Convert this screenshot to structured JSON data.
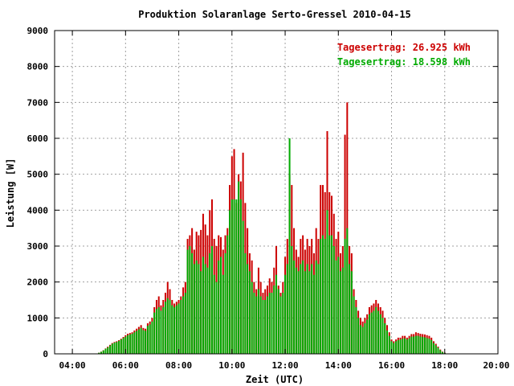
{
  "chart_data": {
    "type": "bar",
    "title": "Produktion Solaranlage Serto-Gressel 2010-04-15",
    "xlabel": "Zeit (UTC)",
    "ylabel": "Leistung [W]",
    "xlim": [
      3.333,
      20.0
    ],
    "ylim": [
      0,
      9000
    ],
    "x_ticks": [
      4,
      6,
      8,
      10,
      12,
      14,
      16,
      18,
      20
    ],
    "x_tick_labels": [
      "04:00",
      "06:00",
      "08:00",
      "10:00",
      "12:00",
      "14:00",
      "16:00",
      "18:00",
      "20:00"
    ],
    "y_ticks": [
      0,
      1000,
      2000,
      3000,
      4000,
      5000,
      6000,
      7000,
      8000,
      9000
    ],
    "y_tick_labels": [
      "0",
      "1000",
      "2000",
      "3000",
      "4000",
      "5000",
      "6000",
      "7000",
      "8000",
      "9000"
    ],
    "grid": true,
    "legend_position": "top-right",
    "annotations": [
      {
        "text": "Tagesertrag: 26.925 kWh",
        "color": "#cc0000"
      },
      {
        "text": "Tagesertrag: 18.598 kWh",
        "color": "#00aa00"
      }
    ],
    "series_colors": [
      "#cc0000",
      "#00aa00"
    ],
    "x": [
      5.0,
      5.083,
      5.167,
      5.25,
      5.333,
      5.417,
      5.5,
      5.583,
      5.667,
      5.75,
      5.833,
      5.917,
      6.0,
      6.083,
      6.167,
      6.25,
      6.333,
      6.417,
      6.5,
      6.583,
      6.667,
      6.75,
      6.833,
      6.917,
      7.0,
      7.083,
      7.167,
      7.25,
      7.333,
      7.417,
      7.5,
      7.583,
      7.667,
      7.75,
      7.833,
      7.917,
      8.0,
      8.083,
      8.167,
      8.25,
      8.333,
      8.417,
      8.5,
      8.583,
      8.667,
      8.75,
      8.833,
      8.917,
      9.0,
      9.083,
      9.167,
      9.25,
      9.333,
      9.417,
      9.5,
      9.583,
      9.667,
      9.75,
      9.833,
      9.917,
      10.0,
      10.083,
      10.167,
      10.25,
      10.333,
      10.417,
      10.5,
      10.583,
      10.667,
      10.75,
      10.833,
      10.917,
      11.0,
      11.083,
      11.167,
      11.25,
      11.333,
      11.417,
      11.5,
      11.583,
      11.667,
      11.75,
      11.833,
      11.917,
      12.0,
      12.083,
      12.167,
      12.25,
      12.333,
      12.417,
      12.5,
      12.583,
      12.667,
      12.75,
      12.833,
      12.917,
      13.0,
      13.083,
      13.167,
      13.25,
      13.333,
      13.417,
      13.5,
      13.583,
      13.667,
      13.75,
      13.833,
      13.917,
      14.0,
      14.083,
      14.167,
      14.25,
      14.333,
      14.417,
      14.5,
      14.583,
      14.667,
      14.75,
      14.833,
      14.917,
      15.0,
      15.083,
      15.167,
      15.25,
      15.333,
      15.417,
      15.5,
      15.583,
      15.667,
      15.75,
      15.833,
      15.917,
      16.0,
      16.083,
      16.167,
      16.25,
      16.333,
      16.417,
      16.5,
      16.583,
      16.667,
      16.75,
      16.833,
      16.917,
      17.0,
      17.083,
      17.167,
      17.25,
      17.333,
      17.417,
      17.5,
      17.583,
      17.667,
      17.75,
      17.833,
      17.917,
      18.0
    ],
    "series": [
      {
        "values": [
          30,
          60,
          100,
          150,
          200,
          250,
          300,
          330,
          350,
          380,
          420,
          470,
          520,
          560,
          580,
          600,
          650,
          700,
          750,
          800,
          720,
          700,
          850,
          900,
          1000,
          1300,
          1500,
          1600,
          1350,
          1500,
          1700,
          2000,
          1800,
          1500,
          1400,
          1450,
          1500,
          1600,
          1850,
          2000,
          3200,
          3300,
          3500,
          2900,
          3400,
          3300,
          3450,
          3900,
          3600,
          3300,
          4000,
          4300,
          3200,
          3000,
          3300,
          3250,
          2900,
          3300,
          3500,
          4700,
          5500,
          5700,
          4200,
          5000,
          4800,
          5600,
          4200,
          3500,
          2800,
          2600,
          2000,
          1800,
          2400,
          2000,
          1700,
          1800,
          1900,
          2100,
          2000,
          2400,
          3000,
          1900,
          1700,
          2000,
          2700,
          3200,
          5000,
          4700,
          3500,
          2900,
          2700,
          3200,
          3300,
          2900,
          3200,
          3000,
          3200,
          2800,
          3500,
          3200,
          4700,
          4700,
          4500,
          6200,
          4500,
          4400,
          3900,
          3200,
          3400,
          2800,
          3000,
          6100,
          7000,
          3000,
          2800,
          1800,
          1500,
          1200,
          1000,
          900,
          1000,
          1100,
          1300,
          1350,
          1400,
          1500,
          1400,
          1300,
          1200,
          1000,
          800,
          600,
          400,
          350,
          400,
          450,
          450,
          500,
          500,
          450,
          500,
          550,
          550,
          600,
          580,
          560,
          550,
          540,
          520,
          500,
          450,
          350,
          280,
          200,
          120,
          60,
          30
        ]
      },
      {
        "values": [
          30,
          55,
          95,
          140,
          180,
          230,
          280,
          310,
          330,
          360,
          400,
          440,
          480,
          520,
          540,
          560,
          600,
          640,
          680,
          720,
          660,
          640,
          780,
          820,
          900,
          1150,
          1250,
          1300,
          1200,
          1300,
          1450,
          1550,
          1500,
          1350,
          1300,
          1350,
          1400,
          1500,
          1600,
          1700,
          2900,
          3000,
          2800,
          2500,
          2600,
          2500,
          2300,
          2700,
          2500,
          2400,
          2800,
          3000,
          2200,
          2000,
          2600,
          2700,
          2200,
          2800,
          3300,
          4000,
          4300,
          4300,
          4300,
          4800,
          4300,
          3700,
          2800,
          2500,
          2300,
          2000,
          1700,
          1600,
          1800,
          1600,
          1500,
          1500,
          1600,
          1700,
          1700,
          1900,
          2200,
          1800,
          1600,
          1700,
          2200,
          2500,
          6000,
          3000,
          2600,
          2400,
          2300,
          2500,
          2600,
          2300,
          2500,
          2300,
          2500,
          2200,
          2600,
          2500,
          3200,
          3300,
          3200,
          4000,
          3300,
          3300,
          3000,
          2600,
          2700,
          2300,
          2400,
          3200,
          3500,
          2500,
          2300,
          1600,
          1300,
          1000,
          800,
          750,
          850,
          950,
          1100,
          1150,
          1200,
          1300,
          1200,
          1100,
          1000,
          850,
          650,
          500,
          350,
          300,
          350,
          380,
          400,
          420,
          430,
          400,
          430,
          480,
          480,
          500,
          500,
          480,
          470,
          460,
          440,
          420,
          380,
          300,
          240,
          170,
          100,
          50,
          25
        ]
      }
    ]
  }
}
